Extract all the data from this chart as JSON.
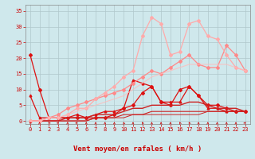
{
  "x": [
    0,
    1,
    2,
    3,
    4,
    5,
    6,
    7,
    8,
    9,
    10,
    11,
    12,
    13,
    14,
    15,
    16,
    17,
    18,
    19,
    20,
    21,
    22,
    23
  ],
  "background_color": "#cfe8ec",
  "grid_color": "#b0c8cc",
  "xlabel": "Vent moyen/en rafales ( km/h )",
  "ylim": [
    -1,
    37
  ],
  "xlim": [
    -0.5,
    23.5
  ],
  "yticks": [
    0,
    5,
    10,
    15,
    20,
    25,
    30,
    35
  ],
  "xticks": [
    0,
    1,
    2,
    3,
    4,
    5,
    6,
    7,
    8,
    9,
    10,
    11,
    12,
    13,
    14,
    15,
    16,
    17,
    18,
    19,
    20,
    21,
    22,
    23
  ],
  "series": [
    {
      "label": "line1_dark_diamond",
      "y": [
        21,
        10,
        1,
        1,
        1,
        1,
        1,
        1,
        1,
        2,
        4,
        5,
        9,
        11,
        6,
        5,
        10,
        11,
        8,
        5,
        5,
        4,
        3,
        3
      ],
      "color": "#dd1111",
      "marker": "D",
      "markersize": 2,
      "linewidth": 0.9,
      "alpha": 1.0
    },
    {
      "label": "line2_dark_triangle",
      "y": [
        8,
        1,
        1,
        1,
        1,
        2,
        1,
        2,
        3,
        3,
        4,
        13,
        12,
        11,
        6,
        6,
        6,
        11,
        8,
        4,
        4,
        3,
        3,
        3
      ],
      "color": "#dd1111",
      "marker": "^",
      "markersize": 2,
      "linewidth": 0.9,
      "alpha": 1.0
    },
    {
      "label": "line3_dark_solid1",
      "y": [
        0,
        0,
        0,
        0,
        1,
        1,
        1,
        2,
        2,
        2,
        3,
        4,
        4,
        5,
        5,
        5,
        5,
        6,
        6,
        5,
        4,
        4,
        4,
        3
      ],
      "color": "#cc2222",
      "marker": null,
      "markersize": 0,
      "linewidth": 1.0,
      "alpha": 1.0
    },
    {
      "label": "line4_dark_solid2",
      "y": [
        0,
        0,
        0,
        0,
        0,
        0,
        0,
        1,
        1,
        1,
        2,
        2,
        2,
        3,
        3,
        3,
        3,
        3,
        3,
        3,
        3,
        3,
        3,
        3
      ],
      "color": "#cc2222",
      "marker": null,
      "markersize": 0,
      "linewidth": 0.8,
      "alpha": 1.0
    },
    {
      "label": "line5_dark_solid3",
      "y": [
        0,
        0,
        0,
        0,
        0,
        0,
        0,
        1,
        1,
        1,
        1,
        2,
        2,
        2,
        2,
        2,
        2,
        2,
        2,
        3,
        3,
        3,
        3,
        3
      ],
      "color": "#cc2222",
      "marker": null,
      "markersize": 0,
      "linewidth": 0.7,
      "alpha": 1.0
    },
    {
      "label": "line6_medium_pink",
      "y": [
        0,
        0,
        1,
        2,
        4,
        5,
        6,
        7,
        8,
        9,
        10,
        12,
        14,
        16,
        15,
        17,
        19,
        21,
        18,
        17,
        17,
        24,
        21,
        16
      ],
      "color": "#ff8888",
      "marker": "D",
      "markersize": 2,
      "linewidth": 0.9,
      "alpha": 1.0
    },
    {
      "label": "line7_light_pink_high",
      "y": [
        0,
        0,
        1,
        1,
        2,
        4,
        4,
        7,
        9,
        11,
        14,
        16,
        27,
        33,
        31,
        21,
        22,
        31,
        32,
        27,
        26,
        21,
        17,
        16
      ],
      "color": "#ffaaaa",
      "marker": "D",
      "markersize": 2,
      "linewidth": 0.9,
      "alpha": 1.0
    },
    {
      "label": "line8_lightest_trend",
      "y": [
        0,
        0,
        1,
        1,
        2,
        3,
        4,
        5,
        6,
        7,
        8,
        10,
        12,
        14,
        15,
        16,
        17,
        18,
        18,
        18,
        18,
        18,
        17,
        16
      ],
      "color": "#ffbbbb",
      "marker": null,
      "markersize": 0,
      "linewidth": 0.8,
      "alpha": 0.8
    }
  ],
  "arrow_color": "#cc0000",
  "xlabel_fontsize": 6.5,
  "tick_fontsize": 5.0,
  "arrow_angles": [
    45,
    90,
    45,
    135,
    90,
    135,
    90,
    90,
    90,
    90,
    75,
    90,
    60,
    90,
    90,
    90,
    60,
    60,
    90,
    90,
    90,
    90,
    90,
    135
  ]
}
